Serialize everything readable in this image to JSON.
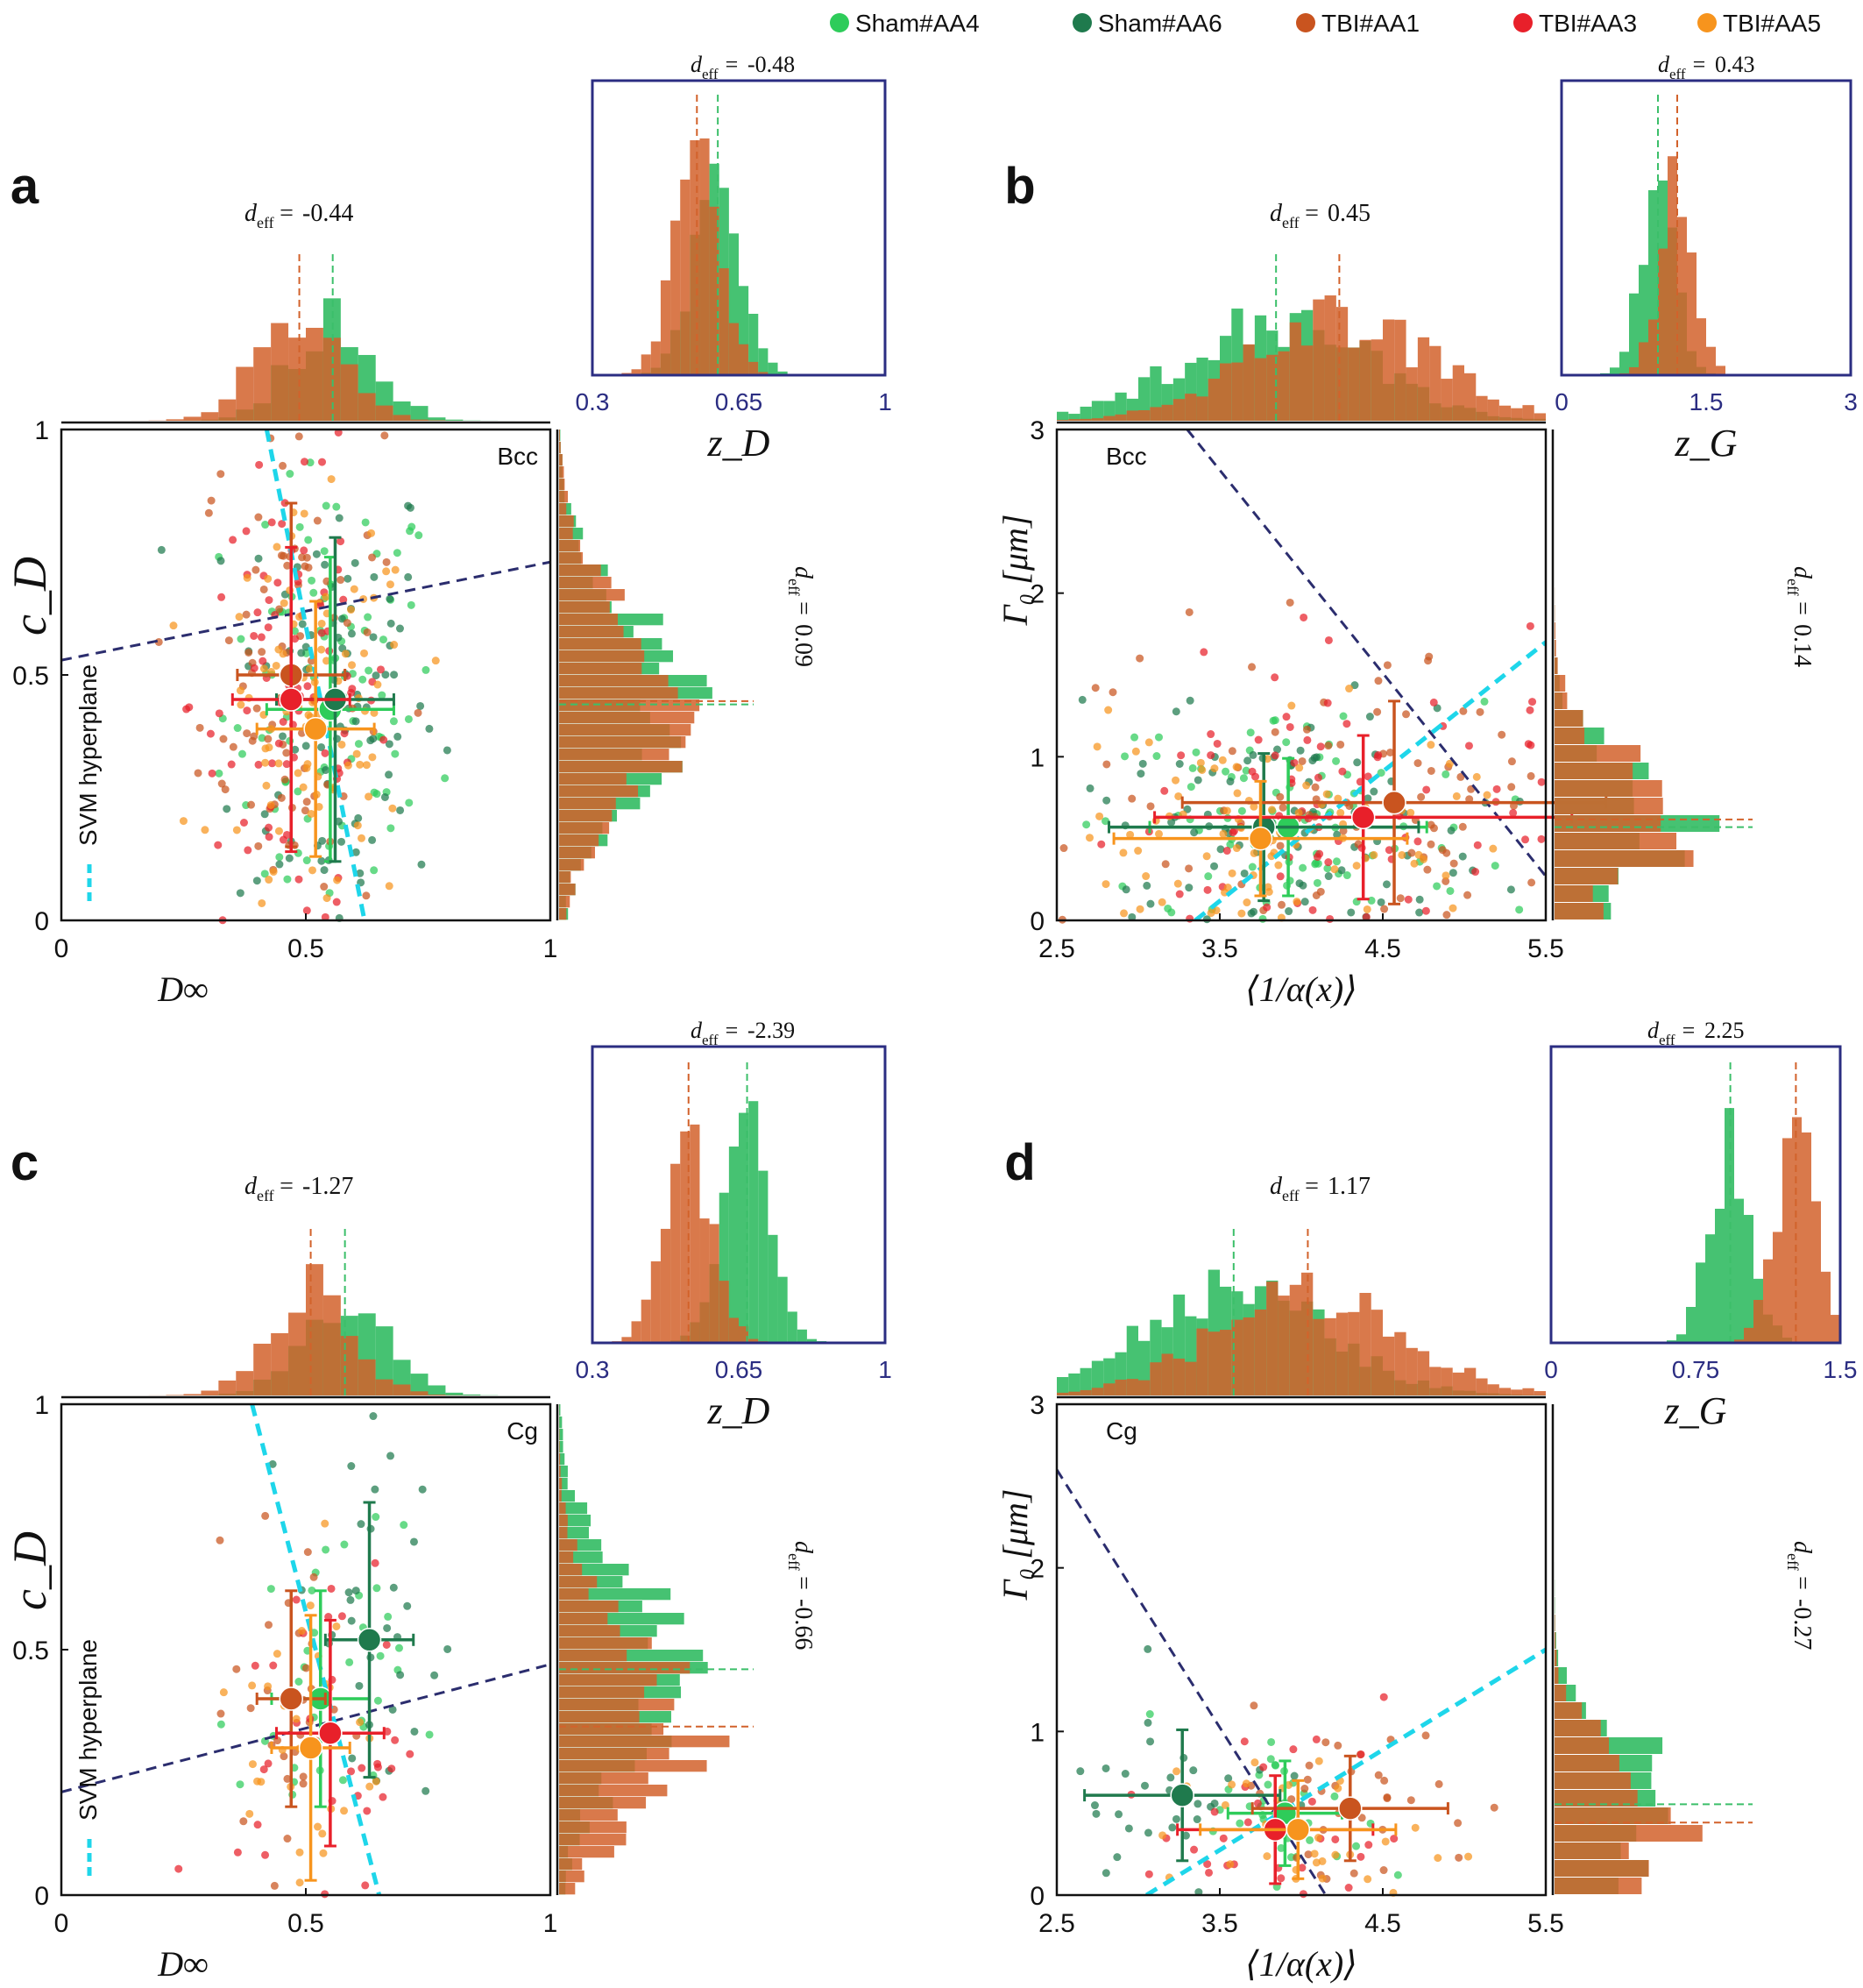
{
  "legend": {
    "items": [
      {
        "label": "Sham#AA4",
        "color": "#2ecc5a"
      },
      {
        "label": "Sham#AA6",
        "color": "#1f7a4d"
      },
      {
        "label": "TBI#AA1",
        "color": "#c9541f"
      },
      {
        "label": "TBI#AA3",
        "color": "#e8202a"
      },
      {
        "label": "TBI#AA5",
        "color": "#f7941d"
      }
    ]
  },
  "colors": {
    "sham_hist": "#3cbf6a",
    "tbi_hist": "#d2622b",
    "svm": "#1ed6ea",
    "boundary": "#2b2d6e",
    "inset_frame": "#2b2d82"
  },
  "svm_label": "SVM hyperplane",
  "chart_data": [
    {
      "id": "a",
      "panel_label": "a",
      "region": "Bcc",
      "type": "scatter",
      "x_label": "D∞",
      "y_label": "c_D",
      "xlim": [
        0,
        1
      ],
      "ylim": [
        0,
        1
      ],
      "x_ticks": [
        "0",
        "0.5",
        "1"
      ],
      "y_ticks": [
        "0",
        "0.5",
        "1"
      ],
      "show_svm_legend": true,
      "top_hist_deff": "-0.44",
      "right_hist_deff": "0.09",
      "inset": {
        "deff": "-0.48",
        "x_label": "z_D",
        "x_ticks": [
          "0.3",
          "0.65",
          "1"
        ]
      },
      "svm_line": [
        [
          0.42,
          1.0
        ],
        [
          0.62,
          0.0
        ]
      ],
      "boundary_line": [
        [
          0.0,
          0.53
        ],
        [
          1.0,
          0.73
        ]
      ],
      "group_means": [
        {
          "group": "Sham#AA4",
          "x": 0.55,
          "y": 0.43,
          "xerr": 0.13,
          "yerr": 0.31
        },
        {
          "group": "Sham#AA6",
          "x": 0.56,
          "y": 0.45,
          "xerr": 0.12,
          "yerr": 0.33
        },
        {
          "group": "TBI#AA1",
          "x": 0.47,
          "y": 0.5,
          "xerr": 0.11,
          "yerr": 0.35
        },
        {
          "group": "TBI#AA3",
          "x": 0.47,
          "y": 0.45,
          "xerr": 0.12,
          "yerr": 0.31
        },
        {
          "group": "TBI#AA5",
          "x": 0.52,
          "y": 0.39,
          "xerr": 0.12,
          "yerr": 0.26
        }
      ]
    },
    {
      "id": "b",
      "panel_label": "b",
      "region": "Bcc",
      "type": "scatter",
      "x_label": "⟨1/α(x)⟩",
      "y_label": "Γ₀ [μm]",
      "xlim": [
        2.5,
        5.5
      ],
      "ylim": [
        0,
        3
      ],
      "x_ticks": [
        "2.5",
        "3.5",
        "4.5",
        "5.5"
      ],
      "y_ticks": [
        "0",
        "1",
        "2",
        "3"
      ],
      "show_svm_legend": false,
      "top_hist_deff": "0.45",
      "right_hist_deff": "0.14",
      "inset": {
        "deff": "0.43",
        "x_label": "z_G",
        "x_ticks": [
          "0",
          "1.5",
          "3"
        ]
      },
      "svm_line": [
        [
          3.35,
          0.0
        ],
        [
          5.5,
          1.7
        ]
      ],
      "boundary_line": [
        [
          3.3,
          3.0
        ],
        [
          5.5,
          0.27
        ]
      ],
      "group_means": [
        {
          "group": "Sham#AA4",
          "x": 3.92,
          "y": 0.57,
          "xerr": 0.85,
          "yerr": 0.42
        },
        {
          "group": "Sham#AA6",
          "x": 3.77,
          "y": 0.57,
          "xerr": 0.95,
          "yerr": 0.45
        },
        {
          "group": "TBI#AA1",
          "x": 4.57,
          "y": 0.72,
          "xerr": 1.3,
          "yerr": 0.62
        },
        {
          "group": "TBI#AA3",
          "x": 4.38,
          "y": 0.63,
          "xerr": 1.28,
          "yerr": 0.5
        },
        {
          "group": "TBI#AA5",
          "x": 3.75,
          "y": 0.5,
          "xerr": 0.9,
          "yerr": 0.35
        }
      ]
    },
    {
      "id": "c",
      "panel_label": "c",
      "region": "Cg",
      "type": "scatter",
      "x_label": "D∞",
      "y_label": "c_D",
      "xlim": [
        0,
        1
      ],
      "ylim": [
        0,
        1
      ],
      "x_ticks": [
        "0",
        "0.5",
        "1"
      ],
      "y_ticks": [
        "0",
        "0.5",
        "1"
      ],
      "show_svm_legend": true,
      "top_hist_deff": "-1.27",
      "right_hist_deff": "-0.66",
      "inset": {
        "deff": "-2.39",
        "x_label": "z_D",
        "x_ticks": [
          "0.3",
          "0.65",
          "1"
        ]
      },
      "svm_line": [
        [
          0.39,
          1.0
        ],
        [
          0.65,
          0.0
        ]
      ],
      "boundary_line": [
        [
          0.0,
          0.21
        ],
        [
          1.0,
          0.47
        ]
      ],
      "group_means": [
        {
          "group": "Sham#AA4",
          "x": 0.53,
          "y": 0.4,
          "xerr": 0.1,
          "yerr": 0.22
        },
        {
          "group": "Sham#AA6",
          "x": 0.63,
          "y": 0.52,
          "xerr": 0.09,
          "yerr": 0.28
        },
        {
          "group": "TBI#AA1",
          "x": 0.47,
          "y": 0.4,
          "xerr": 0.07,
          "yerr": 0.22
        },
        {
          "group": "TBI#AA3",
          "x": 0.55,
          "y": 0.33,
          "xerr": 0.11,
          "yerr": 0.23
        },
        {
          "group": "TBI#AA5",
          "x": 0.51,
          "y": 0.3,
          "xerr": 0.08,
          "yerr": 0.27
        }
      ]
    },
    {
      "id": "d",
      "panel_label": "d",
      "region": "Cg",
      "type": "scatter",
      "x_label": "⟨1/α(x)⟩",
      "y_label": "Γ₀ [μm]",
      "xlim": [
        2.5,
        5.5
      ],
      "ylim": [
        0,
        3
      ],
      "x_ticks": [
        "2.5",
        "3.5",
        "4.5",
        "5.5"
      ],
      "y_ticks": [
        "0",
        "1",
        "2",
        "3"
      ],
      "show_svm_legend": false,
      "top_hist_deff": "1.17",
      "right_hist_deff": "-0.27",
      "inset": {
        "deff": "2.25",
        "x_label": "z_G",
        "x_ticks": [
          "0",
          "0.75",
          "1.5"
        ]
      },
      "svm_line": [
        [
          3.05,
          0.0
        ],
        [
          5.5,
          1.5
        ]
      ],
      "boundary_line": [
        [
          2.5,
          2.6
        ],
        [
          4.15,
          0.0
        ]
      ],
      "group_means": [
        {
          "group": "Sham#AA4",
          "x": 3.9,
          "y": 0.5,
          "xerr": 0.35,
          "yerr": 0.32
        },
        {
          "group": "Sham#AA6",
          "x": 3.27,
          "y": 0.61,
          "xerr": 0.6,
          "yerr": 0.4
        },
        {
          "group": "TBI#AA1",
          "x": 4.3,
          "y": 0.53,
          "xerr": 0.6,
          "yerr": 0.32
        },
        {
          "group": "TBI#AA3",
          "x": 3.84,
          "y": 0.4,
          "xerr": 0.6,
          "yerr": 0.33
        },
        {
          "group": "TBI#AA5",
          "x": 3.98,
          "y": 0.4,
          "xerr": 0.6,
          "yerr": 0.3
        }
      ]
    }
  ]
}
